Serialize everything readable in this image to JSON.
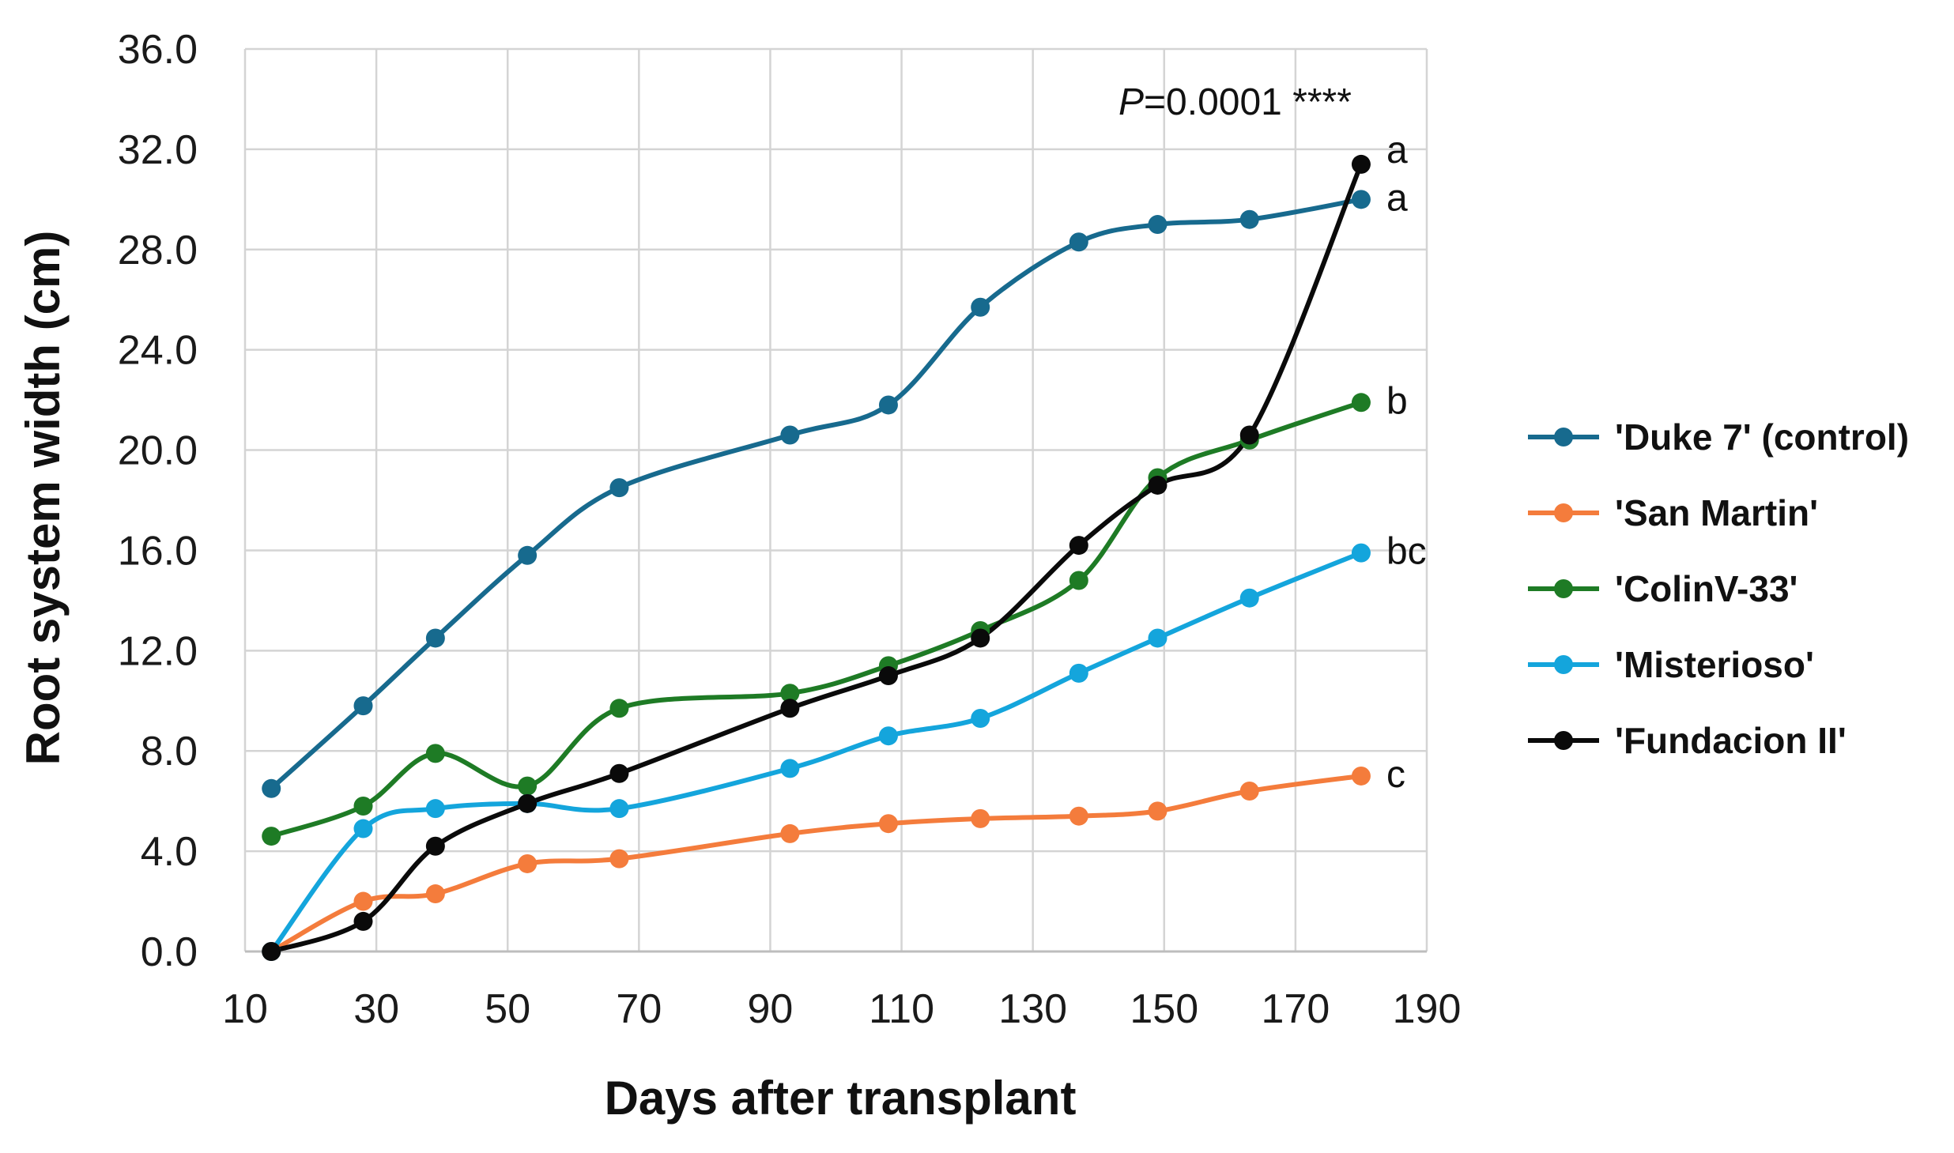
{
  "chart_data": {
    "type": "line",
    "xlabel": "Days after transplant",
    "ylabel": "Root system width (cm)",
    "xlim": [
      10,
      190
    ],
    "ylim": [
      0,
      36
    ],
    "x_ticks": [
      "10",
      "30",
      "50",
      "70",
      "90",
      "110",
      "130",
      "150",
      "170",
      "190"
    ],
    "y_ticks": [
      "0.0",
      "4.0",
      "8.0",
      "12.0",
      "16.0",
      "20.0",
      "24.0",
      "28.0",
      "32.0",
      "36.0"
    ],
    "grid": true,
    "legend_position": "right",
    "smooth_lines": true,
    "annotation": {
      "italic_part": "P",
      "rest": "=0.0001 ****"
    },
    "x": [
      14,
      28,
      39,
      53,
      67,
      93,
      108,
      122,
      137,
      149,
      163,
      180
    ],
    "series": [
      {
        "name": "'Duke 7' (control)",
        "color": "#176a8e",
        "values": [
          6.5,
          9.8,
          12.5,
          15.8,
          18.5,
          20.6,
          21.8,
          25.7,
          28.3,
          29.0,
          29.2,
          30.0
        ],
        "significance": "a"
      },
      {
        "name": "'San Martin'",
        "color": "#f47c3c",
        "values": [
          0.0,
          2.0,
          2.3,
          3.5,
          3.7,
          4.7,
          5.1,
          5.3,
          5.4,
          5.6,
          6.4,
          7.0
        ],
        "significance": "c"
      },
      {
        "name": "'ColinV-33'",
        "color": "#1e7b25",
        "values": [
          4.6,
          5.8,
          7.9,
          6.6,
          9.7,
          10.3,
          11.4,
          12.8,
          14.8,
          18.9,
          20.4,
          21.9
        ],
        "significance": "b"
      },
      {
        "name": "'Misterioso'",
        "color": "#14a5dc",
        "values": [
          0.0,
          4.9,
          5.7,
          5.9,
          5.7,
          7.3,
          8.6,
          9.3,
          11.1,
          12.5,
          14.1,
          15.9
        ],
        "significance": "bc"
      },
      {
        "name": "'Fundacion II'",
        "color": "#0a0a0a",
        "values": [
          0.0,
          1.2,
          4.2,
          5.9,
          7.1,
          9.7,
          11.0,
          12.5,
          16.2,
          18.6,
          20.6,
          31.4
        ],
        "significance": "a"
      }
    ]
  }
}
